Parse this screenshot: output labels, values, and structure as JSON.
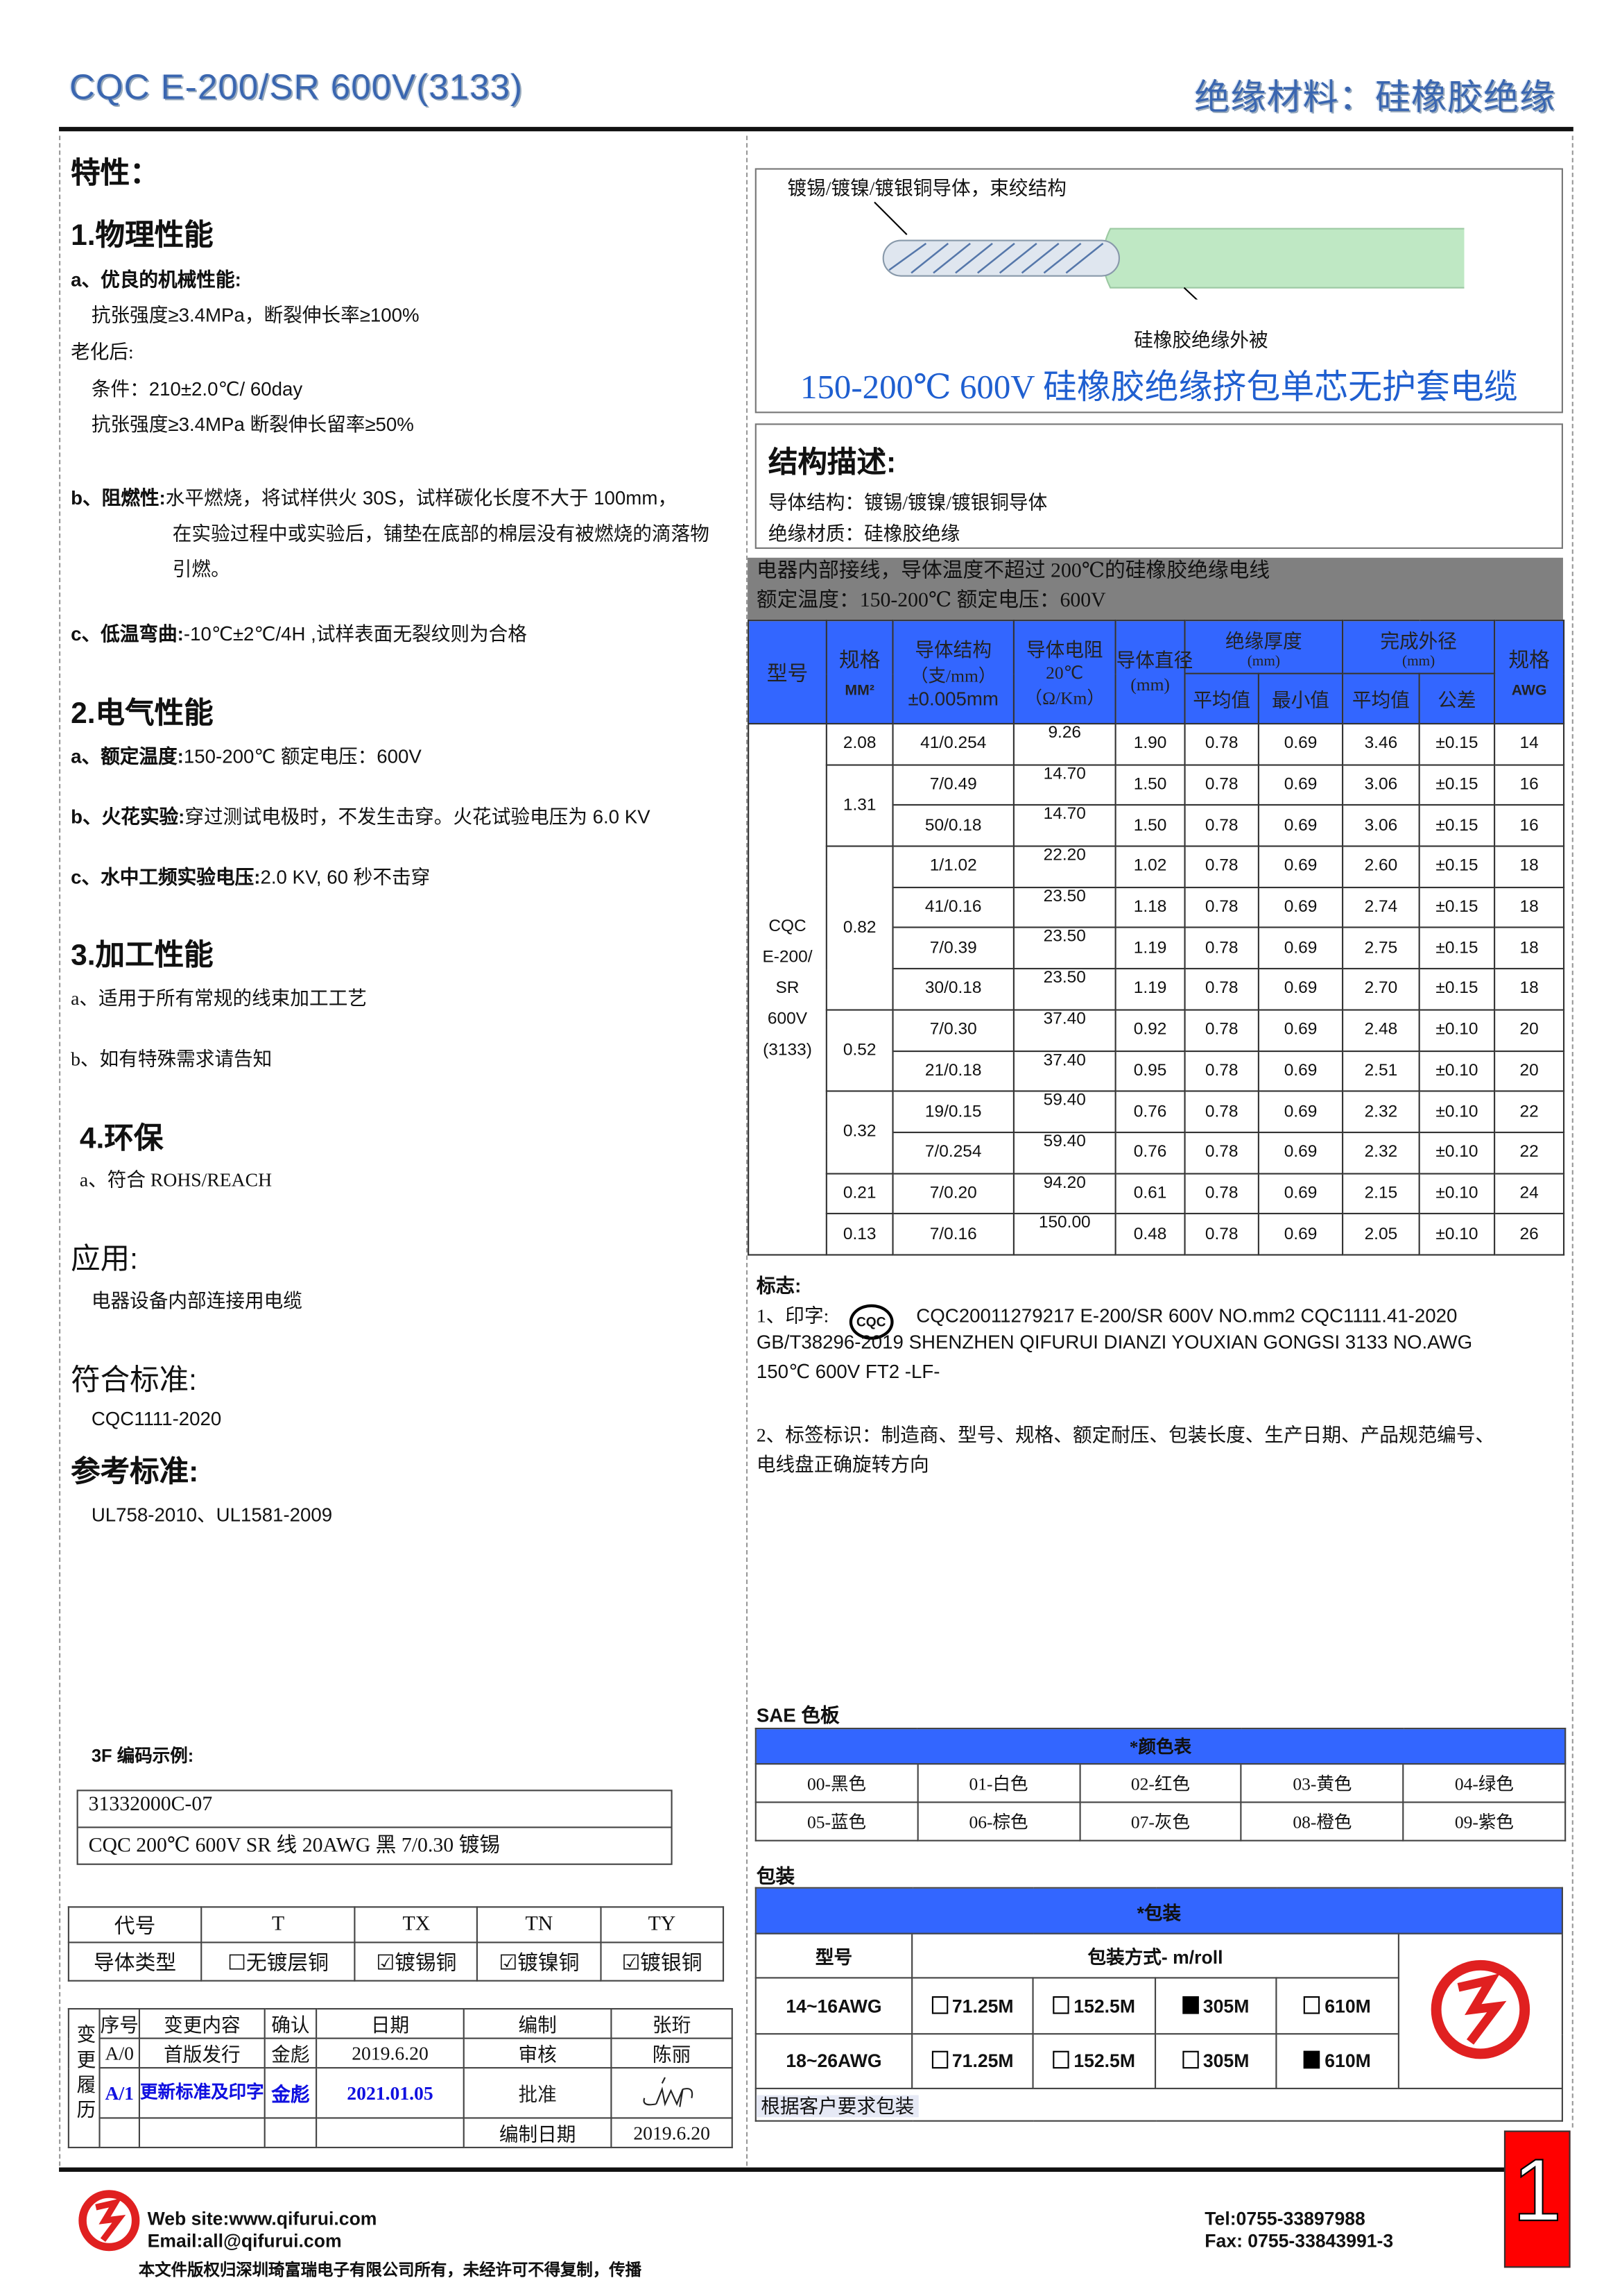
{
  "header": {
    "title_left": "CQC E-200/SR 600V(3133)",
    "title_right": "绝缘材料：硅橡胶绝缘"
  },
  "left": {
    "features_title": "特性：",
    "s1": {
      "title": "1.物理性能",
      "a_label": "a、优良的机械性能:",
      "a_line1": "抗张强度≥3.4MPa，断裂伸长率≥100%",
      "aging": "老化后:",
      "cond": "条件：210±2.0℃/ 60day",
      "a_line2": "抗张强度≥3.4MPa  断裂伸长留率≥50%",
      "b_label": "b、阻燃性:",
      "b_text1": "水平燃烧，将试样供火 30S，试样碳化长度不大于 100mm，",
      "b_text2": "在实验过程中或实验后，铺垫在底部的棉层没有被燃烧的滴落物",
      "b_text3": "引燃。",
      "c_label": "c、低温弯曲:",
      "c_text": "-10℃±2℃/4H ,试样表面无裂纹则为合格"
    },
    "s2": {
      "title": "2.电气性能",
      "a_label": "a、额定温度:",
      "a_text": "150-200℃    额定电压：600V",
      "b_label": "b、火花实验:",
      "b_text": "穿过测试电极时，不发生击穿。火花试验电压为 6.0 KV",
      "c_label": "c、水中工频实验电压:",
      "c_text": "2.0 KV, 60 秒不击穿"
    },
    "s3": {
      "title": "3.加工性能",
      "a": "a、适用于所有常规的线束加工工艺",
      "b": "b、如有特殊需求请告知"
    },
    "s4": {
      "title": "4.环保",
      "a": "a、符合 ROHS/REACH"
    },
    "app_title": "应用:",
    "app_text": "电器设备内部连接用电缆",
    "std_title": "符合标准:",
    "std_text": "CQC1111-2020",
    "ref_title": "参考标准:",
    "ref_text": "UL758-2010、UL1581-2009",
    "code_title": "3F 编码示例:",
    "code_line1": "31332000C-07",
    "code_line2": "CQC 200℃  600V SR 线  20AWG  黑  7/0.30 镀锡",
    "cond_table": {
      "header": [
        "代号",
        "T",
        "TX",
        "TN",
        "TY"
      ],
      "row_label": "导体类型",
      "options": [
        {
          "label": "无镀层铜",
          "checked": false
        },
        {
          "label": "镀锡铜",
          "checked": true
        },
        {
          "label": "镀镍铜",
          "checked": true
        },
        {
          "label": "镀银铜",
          "checked": true
        }
      ]
    },
    "history": {
      "side_label": "变更履历",
      "header": [
        "序号",
        "变更内容",
        "确认",
        "日期",
        "编制",
        "张珩"
      ],
      "row1": [
        "A/0",
        "首版发行",
        "金彪",
        "2019.6.20",
        "审核",
        "陈丽"
      ],
      "row2": [
        "A/1",
        "更新标准及印字",
        "金彪",
        "2021.01.05",
        "批准"
      ],
      "row3": [
        "编制日期",
        "2019.6.20"
      ]
    }
  },
  "right": {
    "img_label_top": "镀锡/镀镍/镀银铜导体，束绞结构",
    "img_label_bottom": "硅橡胶绝缘外被",
    "product_title": "150-200℃  600V 硅橡胶绝缘挤包单芯无护套电缆",
    "struct_title": "结构描述:",
    "struct_line1": "导体结构：镀锡/镀镍/镀银铜导体",
    "struct_line2": "绝缘材质：硅橡胶绝缘",
    "gray_line1": "电器内部接线，导体温度不超过 200℃的硅橡胶绝缘电线",
    "gray_line2": "额定温度：150-200℃  额定电压：600V",
    "spec_table": {
      "h_model": "型号",
      "h_size": "规格",
      "h_size_unit": "MM²",
      "h_struct": "导体结构",
      "h_struct_unit": "（支/mm）",
      "h_struct_tol": "±0.005mm",
      "h_res": "导体电阻",
      "h_res_temp": "20℃",
      "h_res_unit": "（Ω/Km）",
      "h_dia": "导体直径",
      "h_dia_unit": "(mm)",
      "h_ins": "绝缘厚度",
      "h_ins_unit": "(mm)",
      "h_od": "完成外径",
      "h_od_unit": "(mm)",
      "h_avg": "平均值",
      "h_min": "最小值",
      "h_avg2": "平均值",
      "h_tol": "公差",
      "h_awg": "规格",
      "h_awg_unit": "AWG",
      "model": "CQC E-200/ SR 600V (3133)",
      "groups": [
        {
          "size": "2.08",
          "rows": [
            [
              "41/0.254",
              "9.26",
              "1.90",
              "0.78",
              "0.69",
              "3.46",
              "±0.15",
              "14"
            ]
          ]
        },
        {
          "size": "1.31",
          "rows": [
            [
              "7/0.49",
              "14.70",
              "1.50",
              "0.78",
              "0.69",
              "3.06",
              "±0.15",
              "16"
            ],
            [
              "50/0.18",
              "14.70",
              "1.50",
              "0.78",
              "0.69",
              "3.06",
              "±0.15",
              "16"
            ]
          ]
        },
        {
          "size": "0.82",
          "rows": [
            [
              "1/1.02",
              "22.20",
              "1.02",
              "0.78",
              "0.69",
              "2.60",
              "±0.15",
              "18"
            ],
            [
              "41/0.16",
              "23.50",
              "1.18",
              "0.78",
              "0.69",
              "2.74",
              "±0.15",
              "18"
            ],
            [
              "7/0.39",
              "23.50",
              "1.19",
              "0.78",
              "0.69",
              "2.75",
              "±0.15",
              "18"
            ],
            [
              "30/0.18",
              "23.50",
              "1.19",
              "0.78",
              "0.69",
              "2.70",
              "±0.15",
              "18"
            ]
          ]
        },
        {
          "size": "0.52",
          "rows": [
            [
              "7/0.30",
              "37.40",
              "0.92",
              "0.78",
              "0.69",
              "2.48",
              "±0.10",
              "20"
            ],
            [
              "21/0.18",
              "37.40",
              "0.95",
              "0.78",
              "0.69",
              "2.51",
              "±0.10",
              "20"
            ]
          ]
        },
        {
          "size": "0.32",
          "rows": [
            [
              "19/0.15",
              "59.40",
              "0.76",
              "0.78",
              "0.69",
              "2.32",
              "±0.10",
              "22"
            ],
            [
              "7/0.254",
              "59.40",
              "0.76",
              "0.78",
              "0.69",
              "2.32",
              "±0.10",
              "22"
            ]
          ]
        },
        {
          "size": "0.21",
          "rows": [
            [
              "7/0.20",
              "94.20",
              "0.61",
              "0.78",
              "0.69",
              "2.15",
              "±0.10",
              "24"
            ]
          ]
        },
        {
          "size": "0.13",
          "rows": [
            [
              "7/0.16",
              "150.00",
              "0.48",
              "0.78",
              "0.69",
              "2.05",
              "±0.10",
              "26"
            ]
          ]
        }
      ]
    },
    "mark_title": "标志:",
    "mark1_prefix": "1、印字:",
    "cqc_logo": "CQC",
    "mark1_line1": "CQC20011279217   E-200/SR   600V   NO.mm2   CQC1111.41-2020",
    "mark1_line2": "GB/T38296-2019 SHENZHEN QIFURUI DIANZI YOUXIAN GONGSI      3133 NO.AWG",
    "mark1_line3": "150℃  600V FT2 -LF-",
    "mark2_line1": "2、标签标识：制造商、型号、规格、额定耐压、包装长度、生产日期、产品规范编号、",
    "mark2_line2": "电线盘正确旋转方向",
    "sae_title": "SAE 色板",
    "color_header": "*颜色表",
    "colors": [
      [
        "00-黑色",
        "01-白色",
        "02-红色",
        "03-黄色",
        "04-绿色"
      ],
      [
        "05-蓝色",
        "06-棕色",
        "07-灰色",
        "08-橙色",
        "09-紫色"
      ]
    ],
    "pack_title": "包装",
    "pack_header": "*包装",
    "pack_model": "型号",
    "pack_mode": "包装方式- m/roll",
    "pack_rows": [
      {
        "label": "14~16AWG",
        "opts": [
          {
            "v": "71.25M",
            "on": false
          },
          {
            "v": "152.5M",
            "on": false
          },
          {
            "v": "305M",
            "on": true
          },
          {
            "v": "610M",
            "on": false
          }
        ]
      },
      {
        "label": "18~26AWG",
        "opts": [
          {
            "v": "71.25M",
            "on": false
          },
          {
            "v": "152.5M",
            "on": false
          },
          {
            "v": "305M",
            "on": false
          },
          {
            "v": "610M",
            "on": true
          }
        ]
      }
    ],
    "pack_note": "根据客户要求包装"
  },
  "footer": {
    "web": "Web site:www.qifurui.com",
    "email": "Email:all@qifurui.com",
    "tel": "Tel:0755-33897988",
    "fax": "Fax: 0755-33843991-3",
    "copyright": "本文件版权归深圳琦富瑞电子有限公司所有，未经许可不得复制，传播",
    "page": "1"
  },
  "colors": {
    "header_blue": "#3366ff",
    "title_blue": "#1f5fd0",
    "brand_red": "#e02020",
    "gray_bar": "#808080",
    "insulation_green": "#bfe8c4"
  }
}
